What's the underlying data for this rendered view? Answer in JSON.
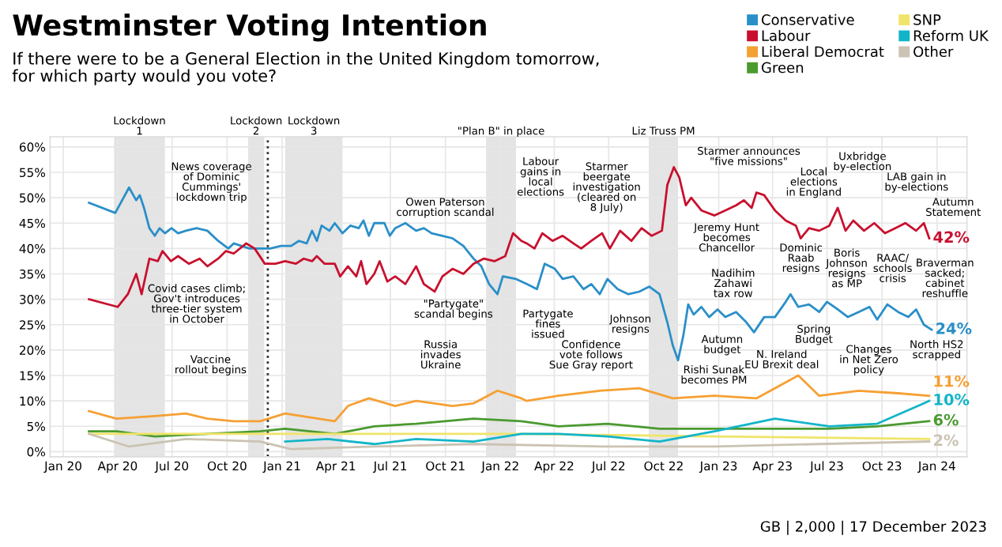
{
  "chart_data": {
    "type": "line",
    "title": "Westminster Voting Intention",
    "subtitle": "If there were to be a General Election in the United Kingdom tomorrow,\nfor which party would you vote?",
    "series": [
      {
        "name": "Conservative",
        "color": "#2a8fc8",
        "x": [
          "2020-02-13",
          "2020-03-28",
          "2020-04-20",
          "2020-05-02",
          "2020-05-08",
          "2020-05-15",
          "2020-05-24",
          "2020-06-02",
          "2020-06-10",
          "2020-06-19",
          "2020-06-30",
          "2020-07-11",
          "2020-07-24",
          "2020-08-11",
          "2020-08-29",
          "2020-09-16",
          "2020-10-03",
          "2020-10-12",
          "2020-10-25",
          "2020-11-07",
          "2020-11-25",
          "2020-12-12",
          "2020-12-30",
          "2021-01-16",
          "2021-01-29",
          "2021-02-11",
          "2021-02-20",
          "2021-02-28",
          "2021-03-08",
          "2021-03-21",
          "2021-03-30",
          "2021-04-12",
          "2021-04-25",
          "2021-05-09",
          "2021-05-17",
          "2021-05-26",
          "2021-06-04",
          "2021-06-21",
          "2021-06-30",
          "2021-07-09",
          "2021-07-26",
          "2021-08-13",
          "2021-08-26",
          "2021-09-08",
          "2021-09-26",
          "2021-10-13",
          "2021-10-31",
          "2021-11-17",
          "2021-11-30",
          "2021-12-13",
          "2021-12-27",
          "2022-01-05",
          "2022-01-27",
          "2022-02-14",
          "2022-03-03",
          "2022-03-16",
          "2022-04-02",
          "2022-04-15",
          "2022-05-03",
          "2022-05-20",
          "2022-06-02",
          "2022-06-16",
          "2022-06-29",
          "2022-07-16",
          "2022-08-03",
          "2022-08-21",
          "2022-09-07",
          "2022-09-24",
          "2022-10-07",
          "2022-10-16",
          "2022-10-25",
          "2022-11-03",
          "2022-11-11",
          "2022-11-20",
          "2022-12-03",
          "2022-12-16",
          "2022-12-30",
          "2023-01-12",
          "2023-01-30",
          "2023-02-16",
          "2023-03-01",
          "2023-03-18",
          "2023-04-05",
          "2023-04-23",
          "2023-05-01",
          "2023-05-14",
          "2023-06-01",
          "2023-06-18",
          "2023-07-01",
          "2023-07-19",
          "2023-08-05",
          "2023-08-23",
          "2023-09-10",
          "2023-09-23",
          "2023-10-10",
          "2023-10-28",
          "2023-11-14",
          "2023-11-27",
          "2023-12-10",
          "2023-12-23"
        ],
        "values": [
          49,
          47,
          52,
          49.5,
          50.5,
          48,
          44,
          42.5,
          44,
          43,
          44,
          43,
          43.5,
          44,
          43.5,
          41.5,
          40,
          41,
          40.5,
          40,
          40,
          40,
          40.5,
          40.5,
          41.5,
          41,
          43.5,
          41.5,
          44.5,
          43.5,
          45,
          43,
          44.5,
          44,
          45.5,
          42.5,
          45,
          45,
          42.5,
          44,
          45,
          43.5,
          44,
          43,
          42.5,
          42,
          40.5,
          38,
          36.5,
          33,
          31,
          34.5,
          34,
          33,
          32,
          37,
          36,
          34,
          34.5,
          32,
          33,
          31,
          34,
          32,
          31,
          31.5,
          32.5,
          31,
          25.5,
          21,
          18,
          23,
          29,
          27,
          28.5,
          26.5,
          28,
          26.5,
          27.5,
          25.5,
          23.5,
          26.5,
          26.5,
          29.5,
          31,
          28.5,
          29,
          27.5,
          29.5,
          28,
          26.5,
          27.5,
          28.5,
          26,
          29,
          27.5,
          26.5,
          28,
          25,
          24
        ]
      },
      {
        "name": "Labour",
        "color": "#c8102e",
        "x": [
          "2020-02-13",
          "2020-04-01",
          "2020-04-18",
          "2020-05-02",
          "2020-05-11",
          "2020-05-24",
          "2020-06-07",
          "2020-06-15",
          "2020-06-29",
          "2020-07-11",
          "2020-07-29",
          "2020-08-16",
          "2020-08-29",
          "2020-09-16",
          "2020-09-29",
          "2020-10-12",
          "2020-11-02",
          "2020-11-16",
          "2020-12-03",
          "2020-12-21",
          "2021-01-06",
          "2021-01-24",
          "2021-02-06",
          "2021-02-20",
          "2021-02-28",
          "2021-03-13",
          "2021-03-30",
          "2021-04-08",
          "2021-04-21",
          "2021-05-05",
          "2021-05-13",
          "2021-05-22",
          "2021-06-04",
          "2021-06-13",
          "2021-06-26",
          "2021-07-09",
          "2021-07-26",
          "2021-08-13",
          "2021-08-26",
          "2021-09-13",
          "2021-09-26",
          "2021-10-13",
          "2021-10-31",
          "2021-11-17",
          "2021-12-04",
          "2021-12-22",
          "2022-01-09",
          "2022-01-22",
          "2022-02-05",
          "2022-02-14",
          "2022-02-27",
          "2022-03-12",
          "2022-03-29",
          "2022-04-15",
          "2022-05-03",
          "2022-05-16",
          "2022-06-02",
          "2022-06-20",
          "2022-07-03",
          "2022-07-20",
          "2022-08-08",
          "2022-08-25",
          "2022-09-11",
          "2022-09-28",
          "2022-10-07",
          "2022-10-18",
          "2022-10-27",
          "2022-11-07",
          "2022-11-16",
          "2022-12-03",
          "2022-12-25",
          "2023-01-12",
          "2023-01-30",
          "2023-02-12",
          "2023-02-25",
          "2023-03-05",
          "2023-03-18",
          "2023-04-05",
          "2023-04-23",
          "2023-05-10",
          "2023-05-18",
          "2023-06-01",
          "2023-06-18",
          "2023-07-05",
          "2023-07-19",
          "2023-08-01",
          "2023-08-14",
          "2023-09-01",
          "2023-09-18",
          "2023-10-06",
          "2023-10-23",
          "2023-11-09",
          "2023-11-27",
          "2023-12-10",
          "2023-12-19"
        ],
        "values": [
          30,
          28.5,
          31,
          35,
          31,
          38,
          37.5,
          39.5,
          37.5,
          38.5,
          37,
          38,
          36.5,
          38,
          39.5,
          39,
          41,
          40,
          37,
          37,
          37.5,
          37,
          38,
          37.5,
          38.5,
          37,
          37,
          34.5,
          36.5,
          34.5,
          37.5,
          33,
          35,
          37.5,
          33.5,
          34.5,
          33,
          36.5,
          33,
          31.5,
          34.5,
          36,
          35,
          37,
          38,
          37.5,
          38.5,
          43,
          41.5,
          41,
          40,
          43,
          41.5,
          42.5,
          41,
          40,
          41.5,
          43,
          40,
          43.5,
          41.5,
          44,
          42.5,
          43.5,
          52.5,
          56,
          54,
          48.5,
          50,
          47.5,
          46.5,
          47.5,
          48.5,
          49.5,
          48,
          51,
          50.5,
          47.5,
          45.5,
          44.5,
          42,
          44,
          43.5,
          44.5,
          48,
          43.5,
          45.5,
          43.5,
          45,
          43,
          44,
          45,
          43.5,
          45,
          42
        ]
      },
      {
        "name": "Liberal Democrat",
        "color": "#f5a033",
        "x": [
          "2020-02-13",
          "2020-03-30",
          "2020-06-02",
          "2020-07-24",
          "2020-08-29",
          "2020-10-12",
          "2020-11-25",
          "2021-01-06",
          "2021-03-30",
          "2021-04-21",
          "2021-05-26",
          "2021-07-09",
          "2021-08-13",
          "2021-10-13",
          "2021-11-17",
          "2021-12-27",
          "2022-02-05",
          "2022-02-14",
          "2022-04-08",
          "2022-06-16",
          "2022-08-21",
          "2022-10-16",
          "2022-12-25",
          "2023-03-05",
          "2023-05-14",
          "2023-06-18",
          "2023-08-23",
          "2023-10-28",
          "2023-12-19"
        ],
        "values": [
          8,
          6.5,
          7,
          7.5,
          6.5,
          6,
          6,
          7.5,
          6,
          9,
          10.5,
          9,
          10,
          9,
          9.5,
          12,
          10.5,
          10,
          11,
          12,
          12.5,
          10.5,
          11,
          10.5,
          15,
          11,
          12,
          11.5,
          11
        ]
      },
      {
        "name": "Green",
        "color": "#4a9a2f",
        "x": [
          "2020-02-13",
          "2020-03-30",
          "2020-06-02",
          "2020-08-29",
          "2020-11-25",
          "2021-01-06",
          "2021-03-30",
          "2021-06-04",
          "2021-08-13",
          "2021-11-17",
          "2022-02-05",
          "2022-04-08",
          "2022-06-29",
          "2022-09-24",
          "2022-12-25",
          "2023-04-05",
          "2023-07-05",
          "2023-09-23",
          "2023-12-19"
        ],
        "values": [
          4,
          4,
          3,
          3.5,
          4,
          4.5,
          3.5,
          5,
          5.5,
          6.5,
          6,
          5,
          5.5,
          4.5,
          4.5,
          4.5,
          4.5,
          5,
          6
        ]
      },
      {
        "name": "SNP",
        "color": "#f0e46a",
        "x": [
          "2020-02-13",
          "2020-11-25",
          "2022-02-05",
          "2022-12-25",
          "2023-12-19"
        ],
        "values": [
          3.5,
          3.5,
          3.5,
          3,
          2.5
        ]
      },
      {
        "name": "Reform UK",
        "color": "#12b5c8",
        "x": [
          "2021-01-06",
          "2021-03-18",
          "2021-06-04",
          "2021-08-13",
          "2021-11-17",
          "2022-02-05",
          "2022-04-08",
          "2022-06-29",
          "2022-09-24",
          "2022-12-25",
          "2023-04-05",
          "2023-07-05",
          "2023-09-23",
          "2023-12-10",
          "2023-12-19"
        ],
        "values": [
          2,
          2.5,
          1.5,
          2.5,
          2,
          3.5,
          3.5,
          3,
          2,
          4,
          6.5,
          5,
          5.5,
          9.5,
          10
        ]
      },
      {
        "name": "Other",
        "color": "#cbc3b3",
        "x": [
          "2020-02-13",
          "2020-04-20",
          "2020-07-24",
          "2020-11-25",
          "2021-01-16",
          "2021-06-04",
          "2021-11-17",
          "2022-06-29",
          "2022-12-25",
          "2023-06-18",
          "2023-12-19"
        ],
        "values": [
          3.5,
          1,
          2.5,
          2,
          0.5,
          1,
          1.5,
          1,
          1,
          1.5,
          2
        ]
      }
    ],
    "xlim": [
      "2019-12-10",
      "2024-02-20"
    ],
    "xticks": [
      {
        "value": "2020-01-01",
        "label": "Jan 20"
      },
      {
        "value": "2020-04-01",
        "label": "Apr 20"
      },
      {
        "value": "2020-07-01",
        "label": "Jul 20"
      },
      {
        "value": "2020-10-01",
        "label": "Oct 20"
      },
      {
        "value": "2021-01-01",
        "label": "Jan 21"
      },
      {
        "value": "2021-04-01",
        "label": "Apr 21"
      },
      {
        "value": "2021-07-01",
        "label": "Jul 21"
      },
      {
        "value": "2021-10-01",
        "label": "Oct 21"
      },
      {
        "value": "2022-01-01",
        "label": "Jan 22"
      },
      {
        "value": "2022-04-01",
        "label": "Apr 22"
      },
      {
        "value": "2022-07-01",
        "label": "Jul 22"
      },
      {
        "value": "2022-10-01",
        "label": "Oct 22"
      },
      {
        "value": "2023-01-01",
        "label": "Jan 23"
      },
      {
        "value": "2023-04-01",
        "label": "Apr 23"
      },
      {
        "value": "2023-07-01",
        "label": "Jul 23"
      },
      {
        "value": "2023-10-01",
        "label": "Oct 23"
      },
      {
        "value": "2024-01-01",
        "label": "Jan 24"
      }
    ],
    "ylim": [
      -1,
      62
    ],
    "yticks": [
      {
        "value": 0,
        "label": "0%"
      },
      {
        "value": 5,
        "label": "5%"
      },
      {
        "value": 10,
        "label": "10%"
      },
      {
        "value": 15,
        "label": "15%"
      },
      {
        "value": 20,
        "label": "20%"
      },
      {
        "value": 25,
        "label": "25%"
      },
      {
        "value": 30,
        "label": "30%"
      },
      {
        "value": 35,
        "label": "35%"
      },
      {
        "value": 40,
        "label": "40%"
      },
      {
        "value": 45,
        "label": "45%"
      },
      {
        "value": 50,
        "label": "50%"
      },
      {
        "value": 55,
        "label": "55%"
      },
      {
        "value": 60,
        "label": "60%"
      }
    ],
    "grid": true,
    "legend": "top right",
    "marker": "none",
    "line_style": "solid",
    "bands": [
      {
        "axis": "x",
        "from": "2020-03-26",
        "to": "2020-06-19",
        "label": "Lockdown\n1",
        "color": "#e4e4e4"
      },
      {
        "axis": "x",
        "from": "2020-11-05",
        "to": "2020-12-02",
        "label": "Lockdown\n2",
        "color": "#e4e4e4"
      },
      {
        "axis": "x",
        "from": "2021-01-06",
        "to": "2021-04-12",
        "label": "Lockdown\n3",
        "color": "#e4e4e4"
      },
      {
        "axis": "x",
        "from": "2021-12-08",
        "to": "2022-01-27",
        "label": "\"Plan B\" in place",
        "color": "#e4e4e4"
      },
      {
        "axis": "x",
        "from": "2022-09-06",
        "to": "2022-10-25",
        "label": "Liz Truss PM",
        "color": "#e4e4e4"
      }
    ],
    "ref_lines": [
      {
        "axis": "x",
        "value": "2020-12-08",
        "label": null,
        "color": "#333333",
        "line_style": "dotted"
      }
    ],
    "annotations": [
      "News coverage\nof Dominic\nCummings'\nlockdown trip",
      "Covid cases climb;\nGov't introduces\nthree-tier system\nin October",
      "Vaccine\nrollout begins",
      "Owen Paterson\ncorruption scandal",
      "\"Partygate\"\nscandal begins",
      "Russia\ninvades\nUkraine",
      "Labour\ngains in\nlocal\nelections",
      "Starmer\nbeergate\ninvestigation\n(cleared on\n8 July)",
      "Partygate\nfines\nissued",
      "Confidence\nvote follows\nSue Gray report",
      "Johnson\nresigns",
      "Starmer announces\n\"five missions\"",
      "Jeremy Hunt\nbecomes\nChancellor",
      "Local\nelections\nin England",
      "Uxbridge\nby-election",
      "LAB gain in\nby-elections",
      "Autumn\nStatement",
      "Dominic\nRaab\nresigns",
      "Boris\nJohnson\nresigns\nas MP",
      "Nadihim\nZahawi\ntax row",
      "RAAC/\nschools\ncrisis",
      "Braverman\nsacked;\ncabinet\nreshuffle",
      "Autumn\nbudget",
      "Spring\nBudget",
      "N. Ireland\nEU Brexit deal",
      "Rishi Sunak\nbecomes PM",
      "Changes\nin Net Zero\npolicy",
      "North HS2\nscrapped",
      "GB | 2,000 | 17 December 2023",
      {
        "text": "42%",
        "x": "2023-12-19",
        "y": 42
      },
      {
        "text": "24%",
        "x": "2023-12-23",
        "y": 24
      },
      {
        "text": "11%",
        "x": "2023-12-19",
        "y": 11
      },
      {
        "text": "10%",
        "x": "2023-12-19",
        "y": 10
      },
      {
        "text": "6%",
        "x": "2023-12-19",
        "y": 6
      },
      {
        "text": "2%",
        "x": "2023-12-19",
        "y": 2
      }
    ]
  }
}
